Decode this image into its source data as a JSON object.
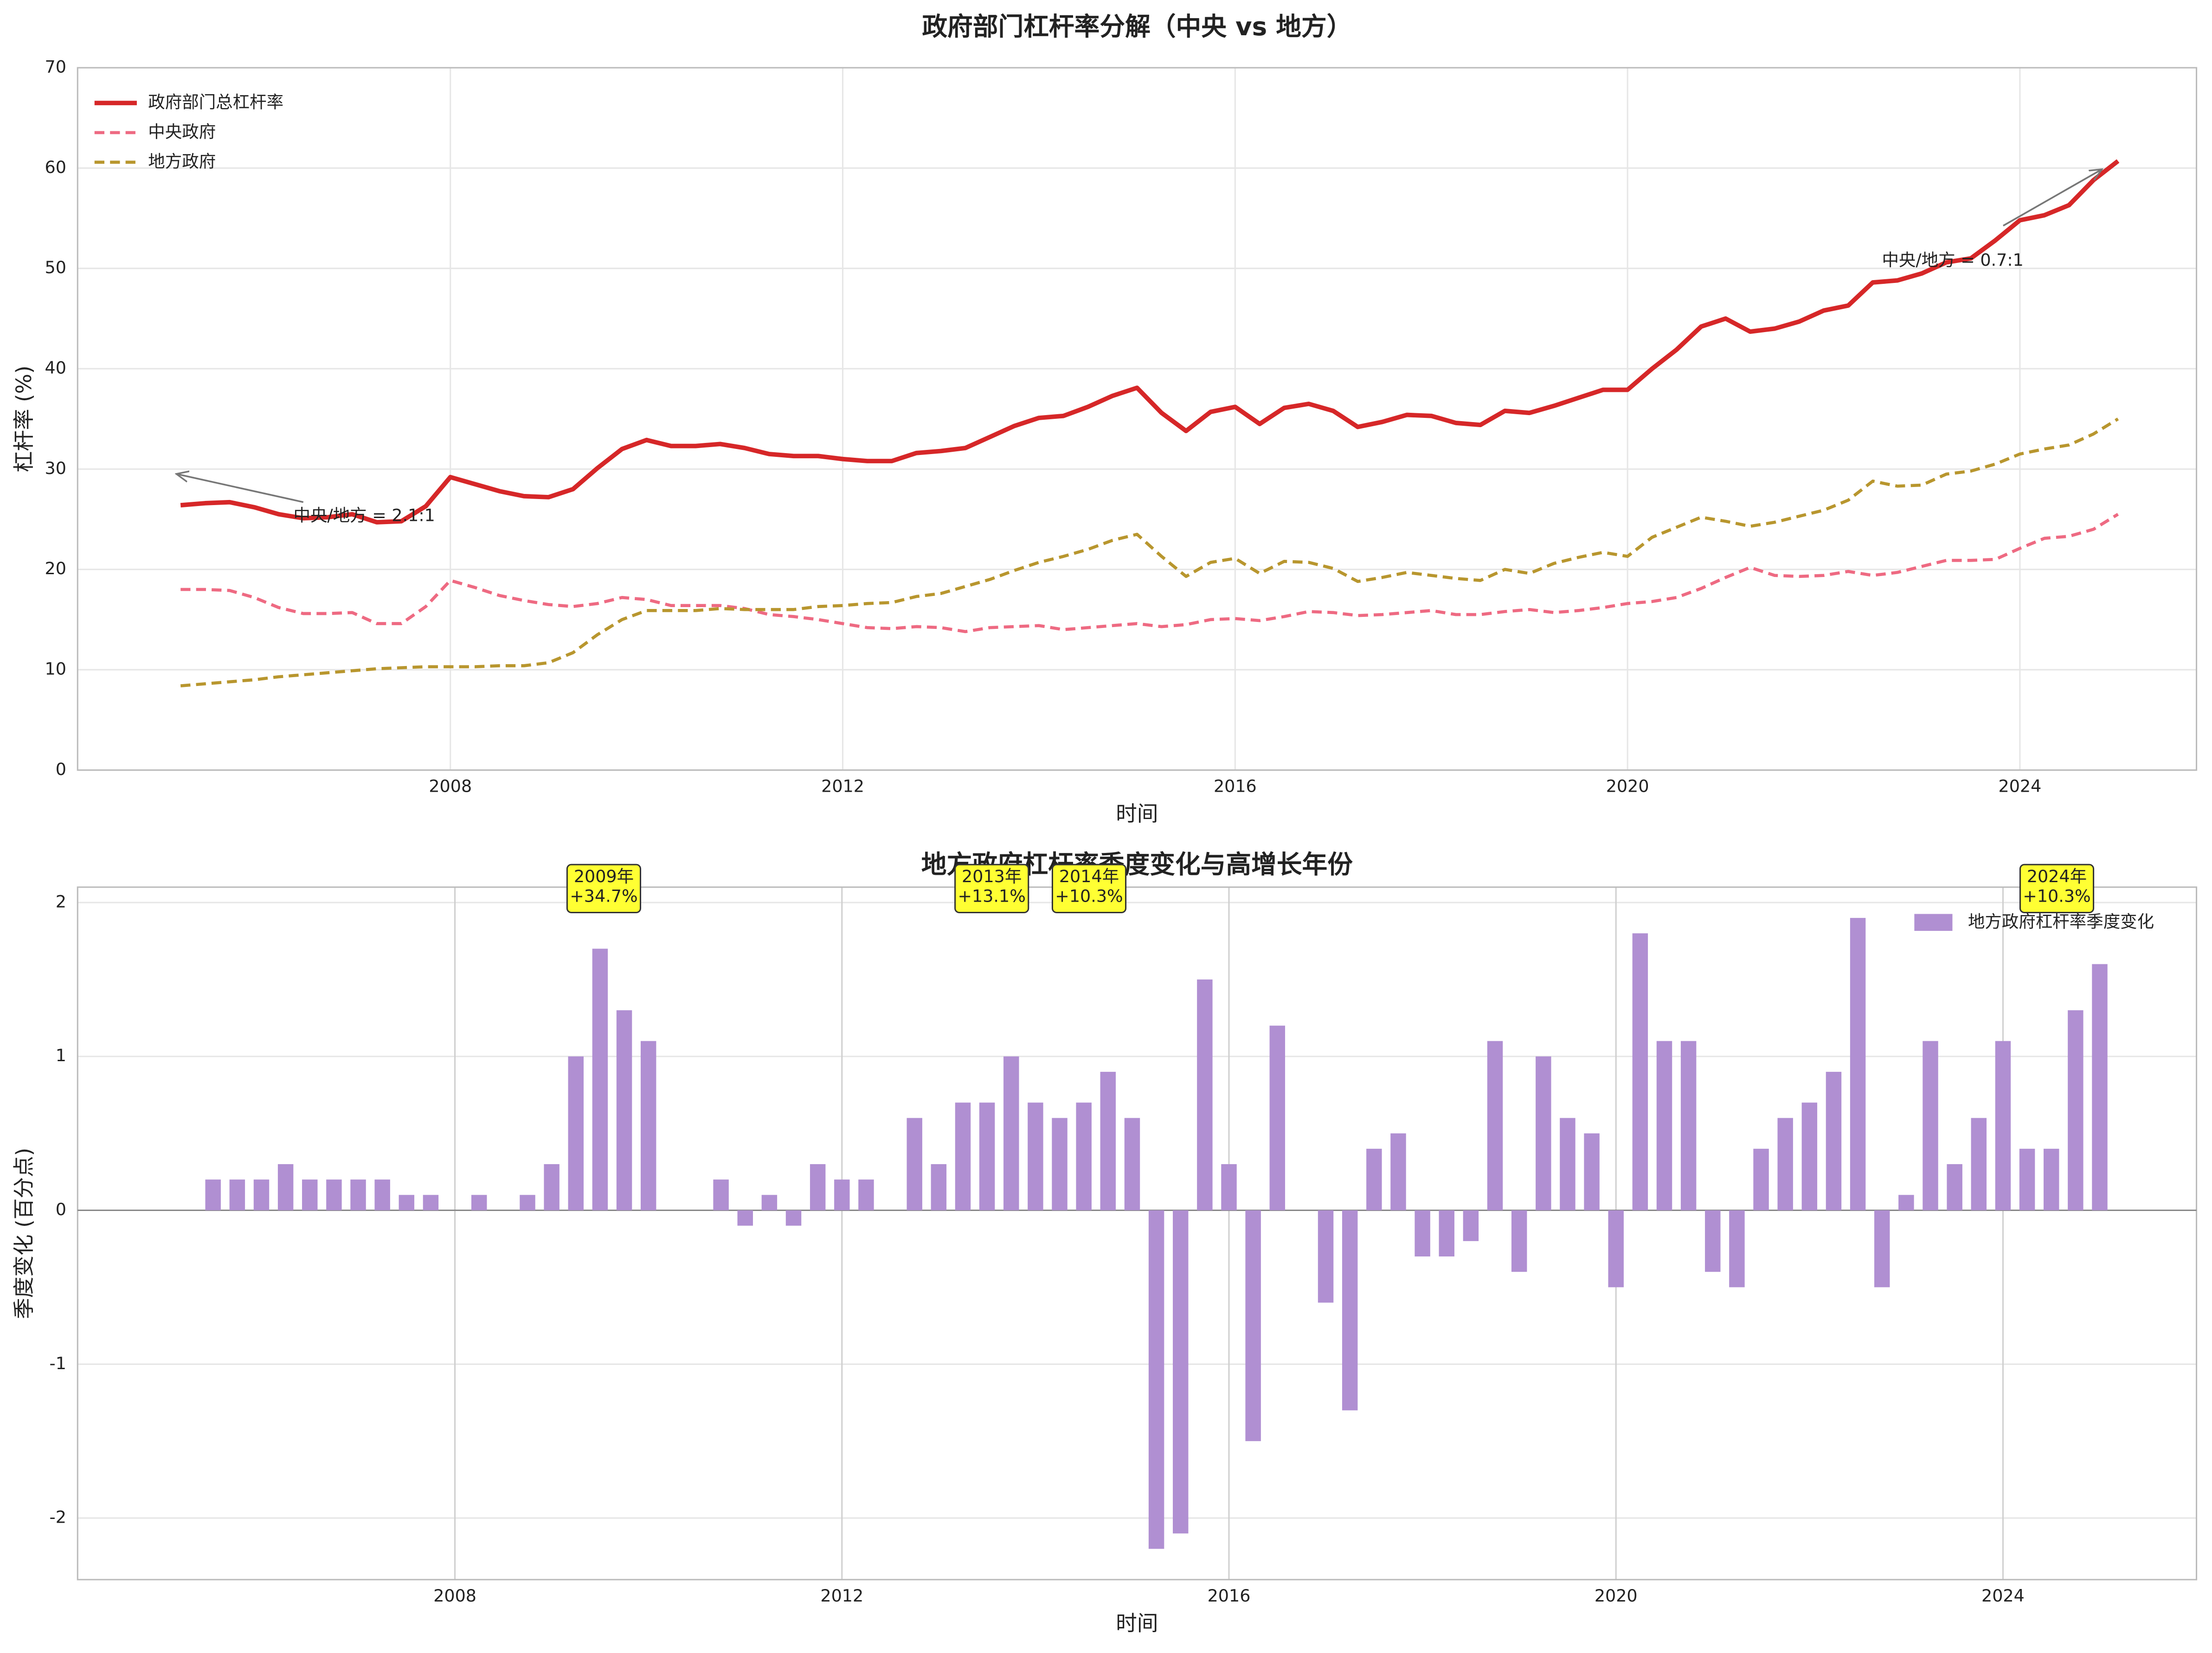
{
  "chart_data": [
    {
      "type": "line",
      "title": "政府部门杠杆率分解（中央 vs 地方）",
      "x_label": "时间",
      "y_label": "杠杆率 (%)",
      "x": [
        2005.25,
        2005.5,
        2005.75,
        2006.0,
        2006.25,
        2006.5,
        2006.75,
        2007.0,
        2007.25,
        2007.5,
        2007.75,
        2008.0,
        2008.25,
        2008.5,
        2008.75,
        2009.0,
        2009.25,
        2009.5,
        2009.75,
        2010.0,
        2010.25,
        2010.5,
        2010.75,
        2011.0,
        2011.25,
        2011.5,
        2011.75,
        2012.0,
        2012.25,
        2012.5,
        2012.75,
        2013.0,
        2013.25,
        2013.5,
        2013.75,
        2014.0,
        2014.25,
        2014.5,
        2014.75,
        2015.0,
        2015.25,
        2015.5,
        2015.75,
        2016.0,
        2016.25,
        2016.5,
        2016.75,
        2017.0,
        2017.25,
        2017.5,
        2017.75,
        2018.0,
        2018.25,
        2018.5,
        2018.75,
        2019.0,
        2019.25,
        2019.5,
        2019.75,
        2020.0,
        2020.25,
        2020.5,
        2020.75,
        2021.0,
        2021.25,
        2021.5,
        2021.75,
        2022.0,
        2022.25,
        2022.5,
        2022.75,
        2023.0,
        2023.25,
        2023.5,
        2023.75,
        2024.0,
        2024.25,
        2024.5,
        2024.75,
        2025.0
      ],
      "series": [
        {
          "name": "政府部门总杠杆率",
          "color": "#d62728",
          "linestyle": "solid",
          "linewidth": 3.2,
          "values": [
            26.4,
            26.6,
            26.7,
            26.2,
            25.5,
            25.1,
            25.2,
            25.5,
            24.7,
            24.8,
            26.3,
            29.2,
            28.5,
            27.8,
            27.3,
            27.2,
            28.0,
            30.1,
            32.0,
            32.9,
            32.3,
            32.3,
            32.5,
            32.1,
            31.5,
            31.3,
            31.3,
            31.0,
            30.8,
            30.8,
            31.6,
            31.8,
            32.1,
            33.2,
            34.3,
            35.1,
            35.3,
            36.2,
            37.3,
            38.1,
            35.6,
            33.8,
            35.7,
            36.2,
            34.5,
            36.1,
            36.5,
            35.8,
            34.2,
            34.7,
            35.4,
            35.3,
            34.6,
            34.4,
            35.8,
            35.6,
            36.3,
            37.1,
            37.9,
            37.9,
            40.0,
            41.9,
            44.2,
            45.0,
            43.7,
            44.0,
            44.7,
            45.8,
            46.3,
            48.6,
            48.8,
            49.5,
            50.6,
            51.0,
            52.8,
            54.8,
            55.3,
            56.3,
            58.8,
            60.7
          ]
        },
        {
          "name": "中央政府",
          "color": "#ee6a82",
          "linestyle": "dashed",
          "linewidth": 2.2,
          "values": [
            18.0,
            18.0,
            17.9,
            17.2,
            16.2,
            15.6,
            15.6,
            15.7,
            14.6,
            14.6,
            16.3,
            18.9,
            18.2,
            17.4,
            16.9,
            16.5,
            16.3,
            16.6,
            17.2,
            17.0,
            16.4,
            16.4,
            16.4,
            16.1,
            15.5,
            15.3,
            15.0,
            14.6,
            14.2,
            14.1,
            14.3,
            14.2,
            13.8,
            14.2,
            14.3,
            14.4,
            14.0,
            14.2,
            14.4,
            14.6,
            14.3,
            14.5,
            15.0,
            15.1,
            14.9,
            15.3,
            15.8,
            15.7,
            15.4,
            15.5,
            15.7,
            15.9,
            15.5,
            15.5,
            15.8,
            16.0,
            15.7,
            15.9,
            16.2,
            16.6,
            16.8,
            17.2,
            18.1,
            19.2,
            20.2,
            19.4,
            19.3,
            19.4,
            19.8,
            19.4,
            19.7,
            20.3,
            20.9,
            20.9,
            21.0,
            22.1,
            23.1,
            23.3,
            24.0,
            25.5
          ]
        },
        {
          "name": "地方政府",
          "color": "#b8962e",
          "linestyle": "dashed",
          "linewidth": 2.2,
          "values": [
            8.4,
            8.6,
            8.8,
            9.0,
            9.3,
            9.5,
            9.7,
            9.9,
            10.1,
            10.2,
            10.3,
            10.3,
            10.3,
            10.4,
            10.4,
            10.7,
            11.7,
            13.5,
            15.0,
            15.9,
            15.9,
            15.9,
            16.1,
            16.0,
            16.0,
            16.0,
            16.3,
            16.4,
            16.6,
            16.7,
            17.3,
            17.6,
            18.3,
            19.0,
            19.9,
            20.7,
            21.3,
            22.0,
            22.9,
            23.5,
            21.3,
            19.3,
            20.7,
            21.1,
            19.6,
            20.8,
            20.7,
            20.1,
            18.8,
            19.2,
            19.7,
            19.4,
            19.1,
            18.9,
            20.0,
            19.6,
            20.6,
            21.2,
            21.7,
            21.3,
            23.2,
            24.2,
            25.2,
            24.8,
            24.3,
            24.7,
            25.3,
            25.9,
            26.9,
            28.8,
            28.3,
            28.4,
            29.5,
            29.8,
            30.5,
            31.5,
            32.0,
            32.4,
            33.5,
            35.0
          ]
        }
      ],
      "annotations": [
        "中央/地方 = 2.1:1",
        "中央/地方 = 0.7:1"
      ],
      "xlim": [
        2004.2,
        2025.8
      ],
      "xticks": [
        2008,
        2012,
        2016,
        2020,
        2024
      ],
      "ylim": [
        0,
        70
      ],
      "yticks": [
        0,
        10,
        20,
        30,
        40,
        50,
        60,
        70
      ],
      "grid": true,
      "legend": "upper-left"
    },
    {
      "type": "bar",
      "title": "地方政府杠杆率季度变化与高增长年份",
      "x_label": "时间",
      "y_label": "季度变化 (百分点)",
      "x": [
        2005.5,
        2005.75,
        2006.0,
        2006.25,
        2006.5,
        2006.75,
        2007.0,
        2007.25,
        2007.5,
        2007.75,
        2008.0,
        2008.25,
        2008.5,
        2008.75,
        2009.0,
        2009.25,
        2009.5,
        2009.75,
        2010.0,
        2010.25,
        2010.5,
        2010.75,
        2011.0,
        2011.25,
        2011.5,
        2011.75,
        2012.0,
        2012.25,
        2012.5,
        2012.75,
        2013.0,
        2013.25,
        2013.5,
        2013.75,
        2014.0,
        2014.25,
        2014.5,
        2014.75,
        2015.0,
        2015.25,
        2015.5,
        2015.75,
        2016.0,
        2016.25,
        2016.5,
        2016.75,
        2017.0,
        2017.25,
        2017.5,
        2017.75,
        2018.0,
        2018.25,
        2018.5,
        2018.75,
        2019.0,
        2019.25,
        2019.5,
        2019.75,
        2020.0,
        2020.25,
        2020.5,
        2020.75,
        2021.0,
        2021.25,
        2021.5,
        2021.75,
        2022.0,
        2022.25,
        2022.5,
        2022.75,
        2023.0,
        2023.25,
        2023.5,
        2023.75,
        2024.0,
        2024.25,
        2024.5,
        2024.75,
        2025.0
      ],
      "series": [
        {
          "name": "地方政府杠杆率季度变化",
          "color": "#b08fd2",
          "values": [
            0.2,
            0.2,
            0.2,
            0.3,
            0.2,
            0.2,
            0.2,
            0.2,
            0.1,
            0.1,
            0,
            0.1,
            0,
            0.1,
            0.3,
            1.0,
            1.7,
            1.3,
            1.1,
            0,
            0,
            0.2,
            -0.1,
            0.1,
            -0.1,
            0.3,
            0.2,
            0.2,
            0,
            0.6,
            0.3,
            0.7,
            0.7,
            1.0,
            0.7,
            0.6,
            0.7,
            0.9,
            0.6,
            -2.2,
            -2.1,
            1.5,
            0.3,
            -1.5,
            1.2,
            0,
            -0.6,
            -1.3,
            0.4,
            0.5,
            -0.3,
            -0.3,
            -0.2,
            1.1,
            -0.4,
            1.0,
            0.6,
            0.5,
            -0.5,
            1.8,
            1.1,
            1.1,
            -0.4,
            -0.5,
            0.4,
            0.6,
            0.7,
            0.9,
            1.9,
            -0.5,
            0.1,
            1.1,
            0.3,
            0.6,
            1.1,
            0.4,
            0.4,
            1.3,
            1.6
          ]
        }
      ],
      "annotations": [
        [
          "2009年",
          "+34.7%"
        ],
        [
          "2013年",
          "+13.1%"
        ],
        [
          "2014年",
          "+10.3%"
        ],
        [
          "2024年",
          "+10.3%"
        ]
      ],
      "xlim": [
        2004.1,
        2026.0
      ],
      "xticks": [
        2008,
        2012,
        2016,
        2020,
        2024
      ],
      "ylim": [
        -2.4,
        2.1
      ],
      "yticks": [
        -2,
        -1,
        0,
        1,
        2
      ],
      "grid": true,
      "legend": "upper-right"
    }
  ]
}
